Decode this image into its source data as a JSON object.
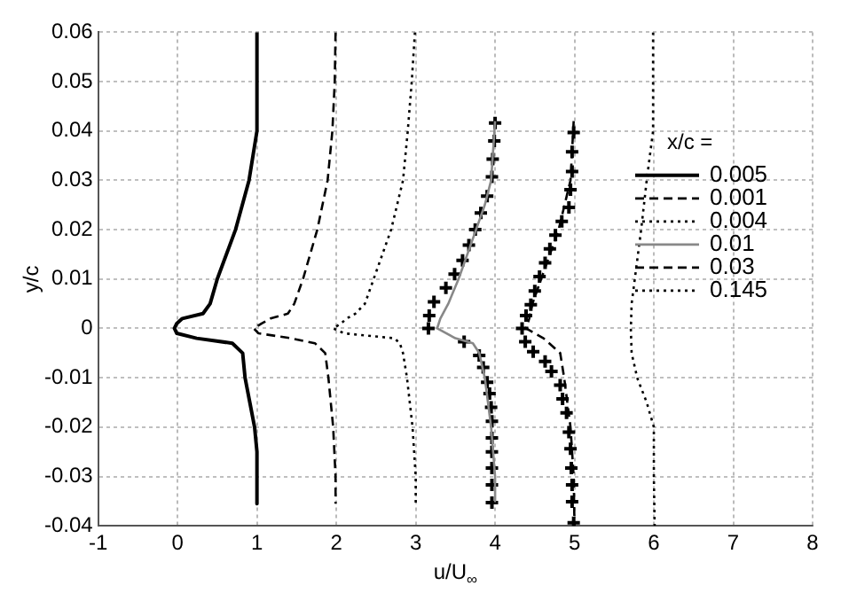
{
  "chart_data": {
    "type": "line",
    "xlabel": "u/U$_{∞}$",
    "ylabel": "y/c",
    "legend_title": "x/c =",
    "legend": "right",
    "grid": true,
    "xlim": [
      -1,
      8
    ],
    "xticks": [
      -1,
      0,
      1,
      2,
      3,
      4,
      5,
      6,
      7,
      8
    ],
    "ylim": [
      -0.04,
      0.06
    ],
    "yticks": [
      -0.04,
      -0.03,
      -0.02,
      -0.01,
      0,
      0.01,
      0.02,
      0.03,
      0.04,
      0.05,
      0.06
    ],
    "series": [
      {
        "name": "0.005",
        "type": "line",
        "line_style": "solid",
        "color": "#000000",
        "x": [
          1,
          1,
          0.9,
          0.73,
          0.5,
          0.41,
          0.32,
          0.06,
          -0.01,
          -0.04,
          -0.01,
          0.24,
          0.69,
          0.82,
          0.85,
          0.91,
          0.97,
          1,
          1
        ],
        "values": [
          0.06,
          0.04,
          0.03,
          0.02,
          0.01,
          0.005,
          0.003,
          0.002,
          0.001,
          0,
          -0.001,
          -0.002,
          -0.003,
          -0.005,
          -0.01,
          -0.015,
          -0.02,
          -0.025,
          -0.0355
        ]
      },
      {
        "name": "0.001",
        "type": "line",
        "line_style": "dashed",
        "color": "#000000",
        "x": [
          1.99,
          1.98,
          1.95,
          1.89,
          1.76,
          1.58,
          1.47,
          1.39,
          1.17,
          1.06,
          0.96,
          1.02,
          1.43,
          1.73,
          1.86,
          1.9,
          1.96,
          1.99,
          1.99
        ],
        "values": [
          0.06,
          0.05,
          0.04,
          0.03,
          0.02,
          0.01,
          0.005,
          0.003,
          0.002,
          0.001,
          0,
          -0.001,
          -0.002,
          -0.003,
          -0.005,
          -0.01,
          -0.02,
          -0.03,
          -0.0355
        ]
      },
      {
        "name": "0.004",
        "type": "line",
        "line_style": "dotted",
        "color": "#000000",
        "x": [
          2.99,
          2.95,
          2.9,
          2.84,
          2.69,
          2.47,
          2.36,
          2.24,
          2.13,
          2.06,
          1.96,
          2.1,
          2.73,
          2.8,
          2.84,
          2.89,
          2.96,
          3,
          3
        ],
        "values": [
          0.06,
          0.05,
          0.04,
          0.03,
          0.02,
          0.01,
          0.005,
          0.003,
          0.002,
          0.001,
          0,
          -0.001,
          -0.002,
          -0.003,
          -0.005,
          -0.01,
          -0.02,
          -0.03,
          -0.0355
        ]
      },
      {
        "name": "0.01",
        "type": "line",
        "line_style": "solid",
        "color": "#888888",
        "x": [
          4,
          3.95,
          3.87,
          3.76,
          3.54,
          3.41,
          3.31,
          3.27,
          3.5,
          3.72,
          3.8,
          3.87,
          3.95,
          4,
          4
        ],
        "values": [
          0.042,
          0.03,
          0.025,
          0.02,
          0.01,
          0.005,
          0.002,
          0,
          -0.002,
          -0.003,
          -0.005,
          -0.01,
          -0.02,
          -0.03,
          -0.035
        ]
      },
      {
        "name": "0.03",
        "type": "line",
        "line_style": "dashed",
        "color": "#000000",
        "x": [
          4.99,
          4.95,
          4.8,
          4.58,
          4.47,
          4.43,
          4.39,
          4.61,
          4.82,
          4.87,
          4.95,
          4.99,
          5
        ],
        "values": [
          0.042,
          0.03,
          0.02,
          0.01,
          0.005,
          0.002,
          0,
          -0.002,
          -0.005,
          -0.01,
          -0.02,
          -0.03,
          -0.04
        ]
      },
      {
        "name": "0.145",
        "type": "line",
        "line_style": "dotted",
        "color": "#000000",
        "x": [
          5.99,
          5.99,
          5.91,
          5.84,
          5.76,
          5.72,
          5.71,
          5.72,
          5.79,
          5.91,
          6,
          6,
          6.01
        ],
        "values": [
          0.06,
          0.04,
          0.03,
          0.02,
          0.01,
          0.005,
          0,
          -0.005,
          -0.01,
          -0.015,
          -0.02,
          -0.03,
          -0.04
        ]
      },
      {
        "type": "scatter",
        "marker": "cross",
        "color": "#000000",
        "x": [
          4,
          3.99,
          3.97,
          3.96,
          3.9,
          3.82,
          3.75,
          3.67,
          3.59,
          3.49,
          3.38,
          3.23,
          3.17,
          3.16,
          3.61,
          3.8,
          3.85,
          3.9,
          3.93,
          3.95,
          3.96,
          3.96,
          3.96,
          3.96,
          3.96,
          3.96
        ],
        "values": [
          0.0416,
          0.038,
          0.0343,
          0.0307,
          0.0268,
          0.0234,
          0.02,
          0.0169,
          0.0138,
          0.011,
          0.0082,
          0.0054,
          0.0026,
          0,
          -0.0027,
          -0.0055,
          -0.0079,
          -0.0109,
          -0.0132,
          -0.016,
          -0.0188,
          -0.0222,
          -0.025,
          -0.0283,
          -0.0317,
          -0.0353
        ]
      },
      {
        "type": "scatter",
        "marker": "cross",
        "color": "#000000",
        "x": [
          4.99,
          4.97,
          4.97,
          4.95,
          4.93,
          4.84,
          4.76,
          4.69,
          4.63,
          4.56,
          4.5,
          4.45,
          4.39,
          4.34,
          4.38,
          4.48,
          4.63,
          4.71,
          4.82,
          4.85,
          4.9,
          4.93,
          4.95,
          4.96,
          4.97,
          4.97,
          4.99
        ],
        "values": [
          0.0397,
          0.0358,
          0.0318,
          0.0281,
          0.0245,
          0.0217,
          0.0189,
          0.0161,
          0.0133,
          0.0105,
          0.0076,
          0.0048,
          0.0026,
          0,
          -0.0027,
          -0.0047,
          -0.0067,
          -0.0087,
          -0.0115,
          -0.0143,
          -0.0171,
          -0.021,
          -0.0244,
          -0.0283,
          -0.0317,
          -0.0351,
          -0.0394
        ]
      }
    ]
  }
}
